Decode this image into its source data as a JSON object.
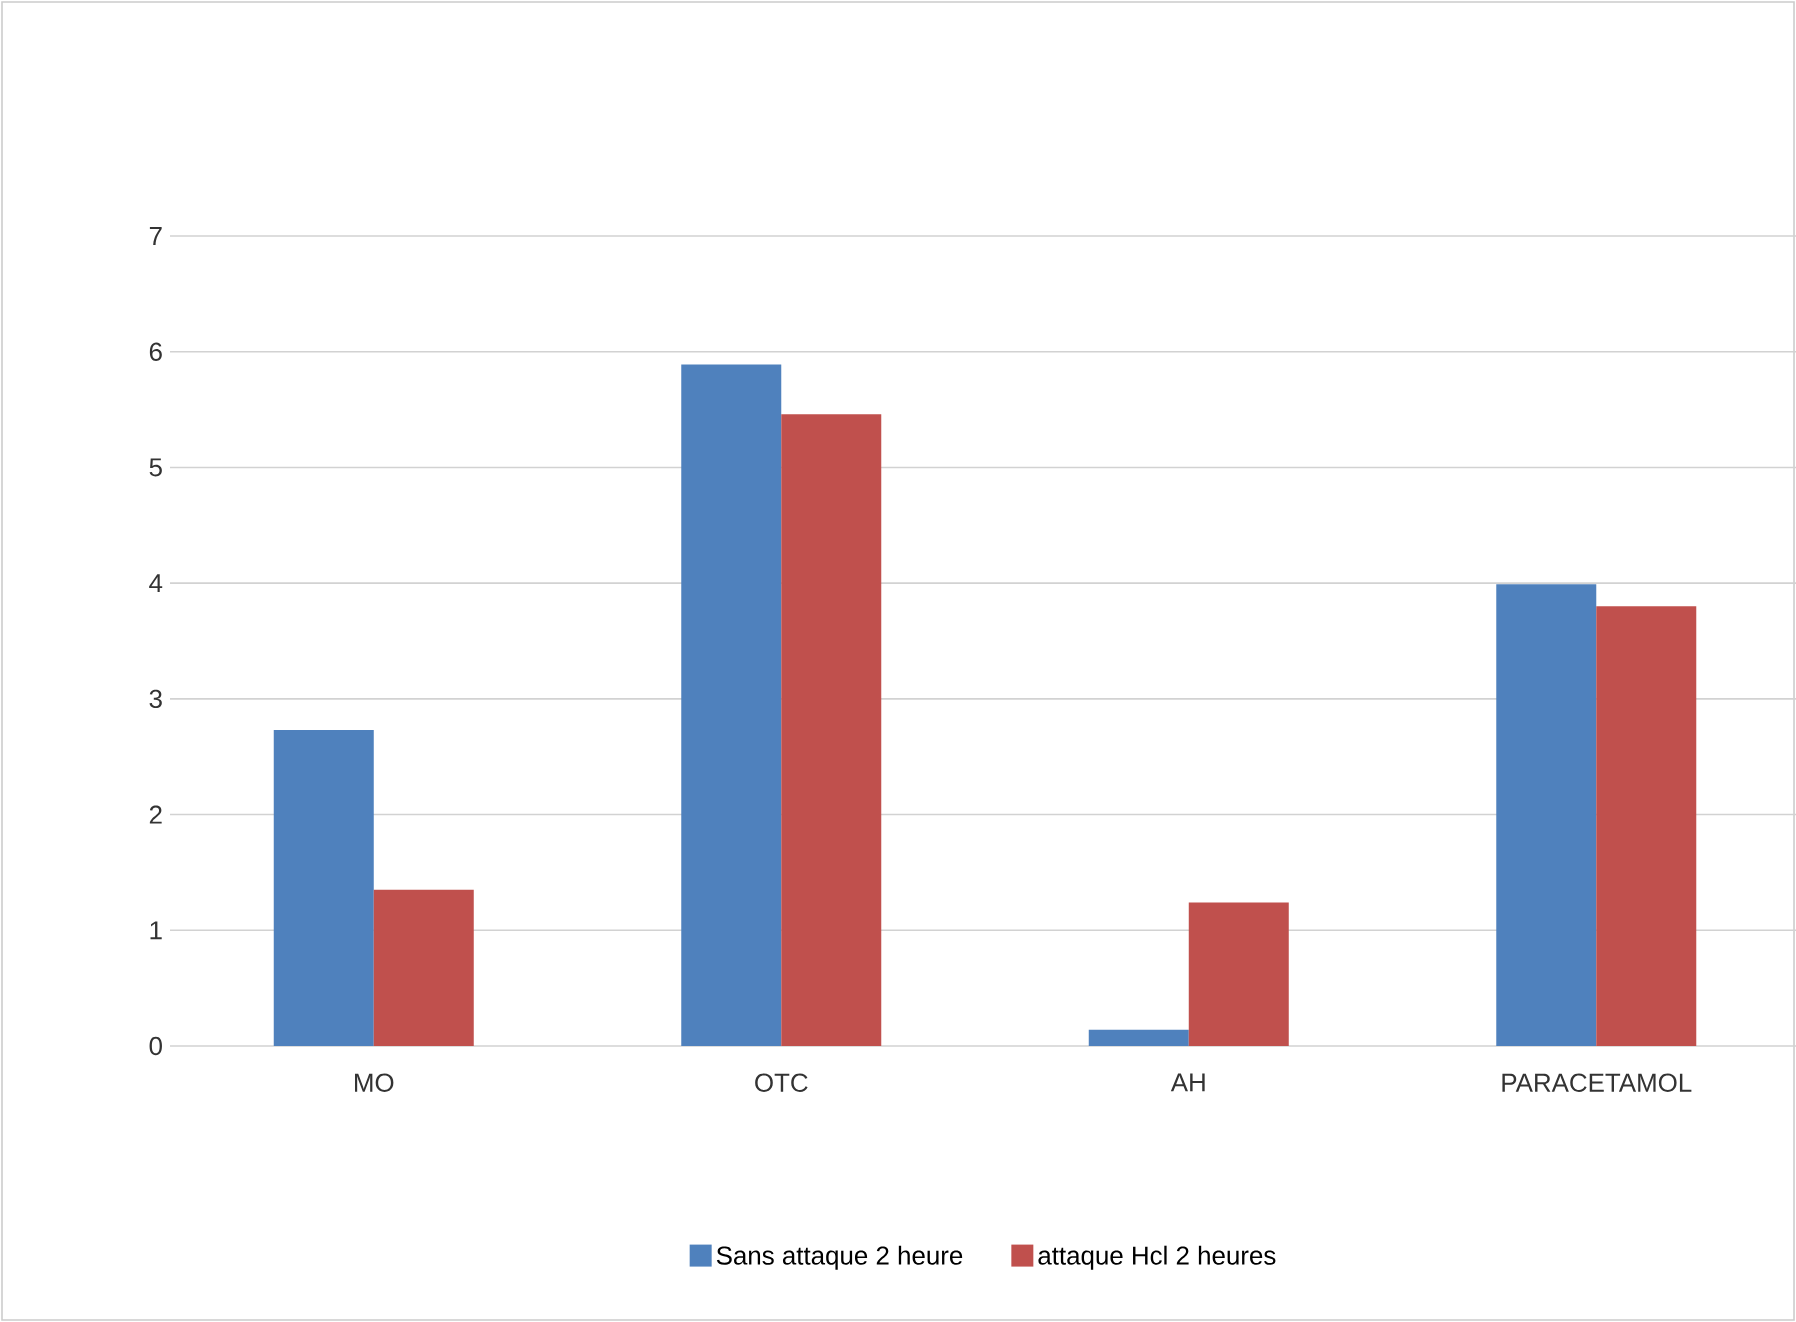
{
  "chart_data": {
    "type": "bar",
    "categories": [
      "MO",
      "OTC",
      "AH",
      "PARACETAMOL"
    ],
    "series": [
      {
        "name": "Sans attaque 2 heure",
        "color": "#4f81bd",
        "values": [
          2.73,
          5.89,
          0.14,
          3.99
        ]
      },
      {
        "name": "attaque  Hcl 2 heures",
        "color": "#c0504d",
        "values": [
          1.35,
          5.46,
          1.24,
          3.8
        ]
      }
    ],
    "ylim": [
      0,
      7
    ],
    "yticks": [
      0,
      1,
      2,
      3,
      4,
      5,
      6,
      7
    ],
    "grid": "y",
    "legend": "bottom"
  }
}
